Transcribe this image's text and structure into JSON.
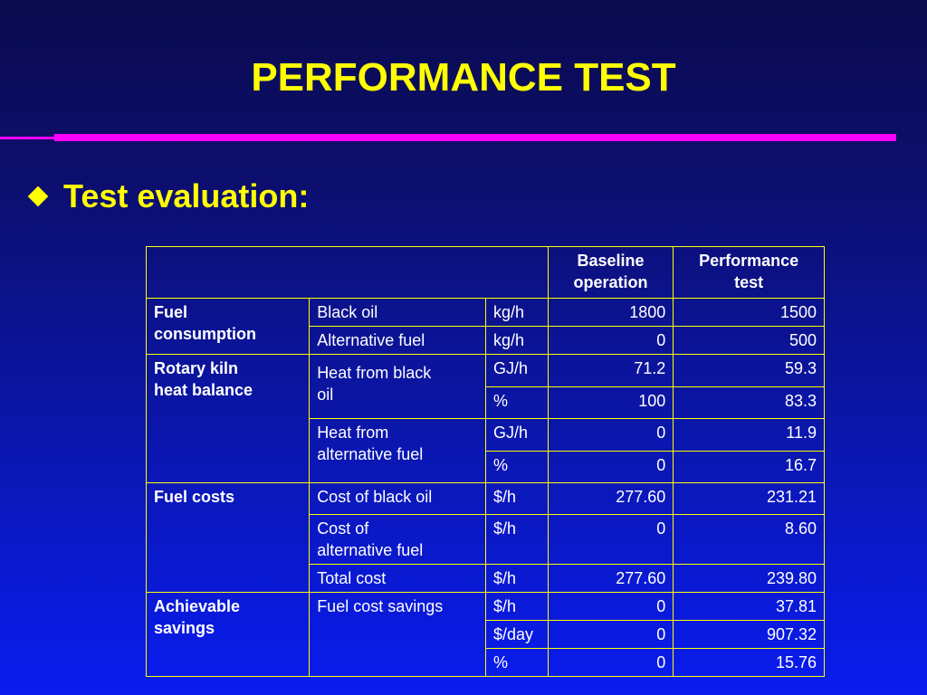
{
  "slide": {
    "title": "PERFORMANCE TEST",
    "bullet": "Test evaluation:",
    "bullet_icon": "diamond-bullet-icon",
    "colors": {
      "title": "#ffff00",
      "rule": "#ff00ff",
      "table_border": "#ffff00",
      "table_text": "#ffffff"
    }
  },
  "table": {
    "headers": {
      "baseline_1": "Baseline",
      "baseline_2": "operation",
      "performance_1": "Performance",
      "performance_2": "test"
    },
    "fuel_consumption": {
      "label_1": "Fuel",
      "label_2": "consumption",
      "rows": [
        {
          "item": "Black oil",
          "unit": "kg/h",
          "baseline": "1800",
          "performance": "1500"
        },
        {
          "item": "Alternative fuel",
          "unit": "kg/h",
          "baseline": "0",
          "performance": "500"
        }
      ]
    },
    "heat_balance": {
      "label_1": "Rotary kiln",
      "label_2": "heat balance",
      "black_oil": {
        "item_1": "Heat from black",
        "item_2": "oil",
        "rows": [
          {
            "unit": "GJ/h",
            "baseline": "71.2",
            "performance": "59.3"
          },
          {
            "unit": "%",
            "baseline": "100",
            "performance": "83.3"
          }
        ]
      },
      "alt_fuel": {
        "item_1": "Heat from",
        "item_2": "alternative fuel",
        "rows": [
          {
            "unit": "GJ/h",
            "baseline": "0",
            "performance": "11.9"
          },
          {
            "unit": "%",
            "baseline": "0",
            "performance": "16.7"
          }
        ]
      }
    },
    "fuel_costs": {
      "label": "Fuel costs",
      "rows": [
        {
          "item_1": "Cost of black oil",
          "item_2": "",
          "unit": "$/h",
          "baseline": "277.60",
          "performance": "231.21"
        },
        {
          "item_1": "Cost of",
          "item_2": "alternative fuel",
          "unit": "$/h",
          "baseline": "0",
          "performance": "8.60"
        },
        {
          "item_1": "Total cost",
          "item_2": "",
          "unit": "$/h",
          "baseline": "277.60",
          "performance": "239.80"
        }
      ]
    },
    "savings": {
      "label_1": "Achievable",
      "label_2": "savings",
      "item": "Fuel cost savings",
      "rows": [
        {
          "unit": "$/h",
          "baseline": "0",
          "performance": "37.81"
        },
        {
          "unit": "$/day",
          "baseline": "0",
          "performance": "907.32"
        },
        {
          "unit": "%",
          "baseline": "0",
          "performance": "15.76"
        }
      ]
    }
  }
}
